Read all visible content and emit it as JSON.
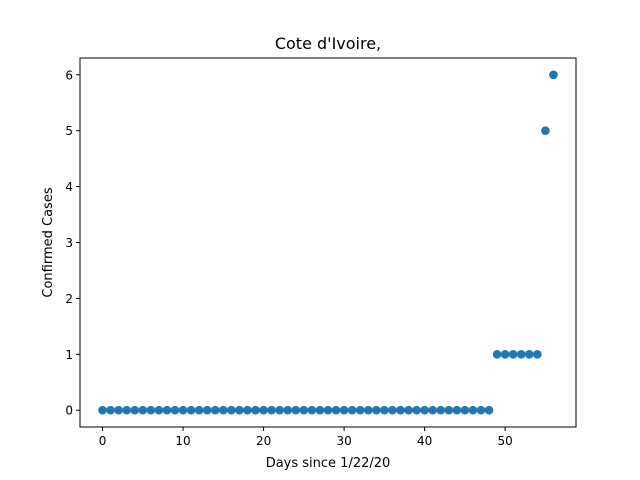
{
  "chart_data": {
    "type": "scatter",
    "title": "Cote d'Ivoire,",
    "xlabel": "Days since 1/22/20",
    "ylabel": "Confirmed Cases",
    "xlim": [
      -2.8,
      58.8
    ],
    "ylim": [
      -0.3,
      6.3
    ],
    "x_ticks": [
      0,
      10,
      20,
      30,
      40,
      50
    ],
    "y_ticks": [
      0,
      1,
      2,
      3,
      4,
      5,
      6
    ],
    "grid": false,
    "series": [
      {
        "color": "#1f77b4",
        "x": [
          0,
          1,
          2,
          3,
          4,
          5,
          6,
          7,
          8,
          9,
          10,
          11,
          12,
          13,
          14,
          15,
          16,
          17,
          18,
          19,
          20,
          21,
          22,
          23,
          24,
          25,
          26,
          27,
          28,
          29,
          30,
          31,
          32,
          33,
          34,
          35,
          36,
          37,
          38,
          39,
          40,
          41,
          42,
          43,
          44,
          45,
          46,
          47,
          48,
          49,
          50,
          51,
          52,
          53,
          54,
          55,
          56
        ],
        "y": [
          0,
          0,
          0,
          0,
          0,
          0,
          0,
          0,
          0,
          0,
          0,
          0,
          0,
          0,
          0,
          0,
          0,
          0,
          0,
          0,
          0,
          0,
          0,
          0,
          0,
          0,
          0,
          0,
          0,
          0,
          0,
          0,
          0,
          0,
          0,
          0,
          0,
          0,
          0,
          0,
          0,
          0,
          0,
          0,
          0,
          0,
          0,
          0,
          0,
          1,
          1,
          1,
          1,
          1,
          1,
          5,
          6
        ]
      }
    ]
  }
}
